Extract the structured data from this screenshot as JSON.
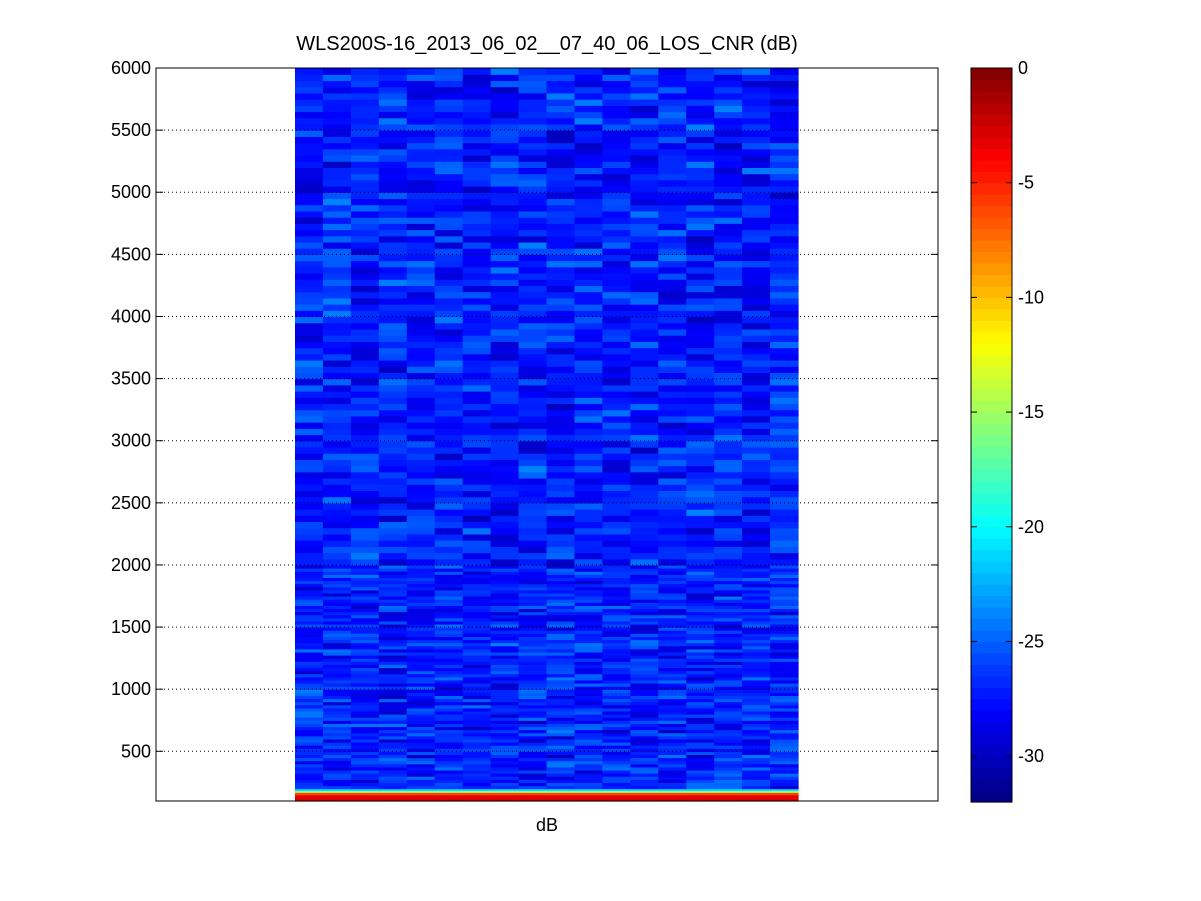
{
  "chart_data": {
    "type": "heatmap",
    "title": "WLS200S-16_2013_06_02__07_40_06_LOS_CNR (dB)",
    "xlabel": "dB",
    "ylabel": "",
    "ylim": [
      100,
      6000
    ],
    "y_ticks": [
      500,
      1000,
      1500,
      2000,
      2500,
      3000,
      3500,
      4000,
      4500,
      5000,
      5500,
      6000
    ],
    "grid": "y-dotted",
    "colormap": "jet",
    "colorbar": {
      "clim": [
        -32,
        0
      ],
      "ticks": [
        0,
        -5,
        -10,
        -15,
        -20,
        -25,
        -30
      ]
    },
    "columns": 18,
    "range_gate_levels_db": [
      {
        "range_from": 100,
        "range_to": 150,
        "value": -3
      },
      {
        "range_from": 150,
        "range_to": 170,
        "value": -6
      },
      {
        "range_from": 170,
        "range_to": 185,
        "value": -15
      },
      {
        "range_from": 185,
        "range_to": 200,
        "value": -21
      },
      {
        "range_from": 200,
        "range_to": 2000,
        "value_min": -31,
        "value_max": -23
      },
      {
        "range_from": 2000,
        "range_to": 6000,
        "value_min": -31,
        "value_max": -23
      }
    ],
    "dominant_value_db": -27
  },
  "colors": {
    "axes": "#000000",
    "background": "#ffffff"
  }
}
